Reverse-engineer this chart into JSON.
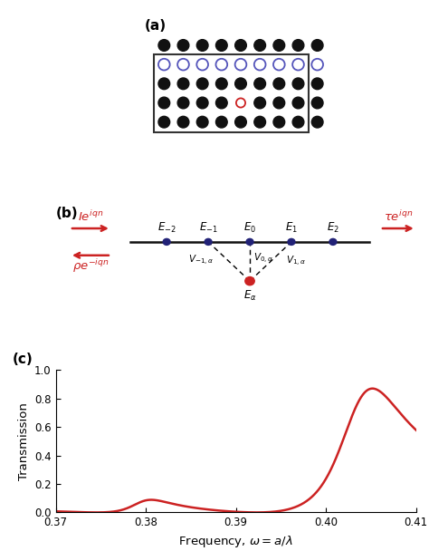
{
  "fig_width": 4.74,
  "fig_height": 6.08,
  "dpi": 100,
  "background_color": "#ffffff",
  "panel_a": {
    "label": "(a)",
    "rect_color": "#333333",
    "black_dot_color": "#111111",
    "blue_circle_color": "#5555bb",
    "red_circle_color": "#cc2222",
    "rows": 5,
    "cols": 9,
    "waveguide_row": 1,
    "defect_row": 3,
    "defect_col": 4
  },
  "panel_b": {
    "label": "(b)",
    "line_color": "#111111",
    "dot_color": "#222277",
    "red_dot_color": "#cc2222",
    "arrow_color": "#cc2222"
  },
  "panel_c": {
    "label": "(c)",
    "line_color": "#cc2222",
    "xlabel": "Frequency, $\\omega = a/\\lambda$",
    "ylabel": "Transmission",
    "xlim": [
      0.37,
      0.41
    ],
    "ylim": [
      0,
      1
    ],
    "xticks": [
      0.37,
      0.38,
      0.39,
      0.4,
      0.41
    ],
    "yticks": [
      0,
      0.2,
      0.4,
      0.6,
      0.8,
      1
    ],
    "zero1": 0.3745,
    "zero2": 0.3923,
    "pole1_re": 0.3795,
    "pole1_im": 0.0028,
    "pole2_re": 0.4035,
    "pole2_im": 0.0045,
    "scale": 1.0
  }
}
